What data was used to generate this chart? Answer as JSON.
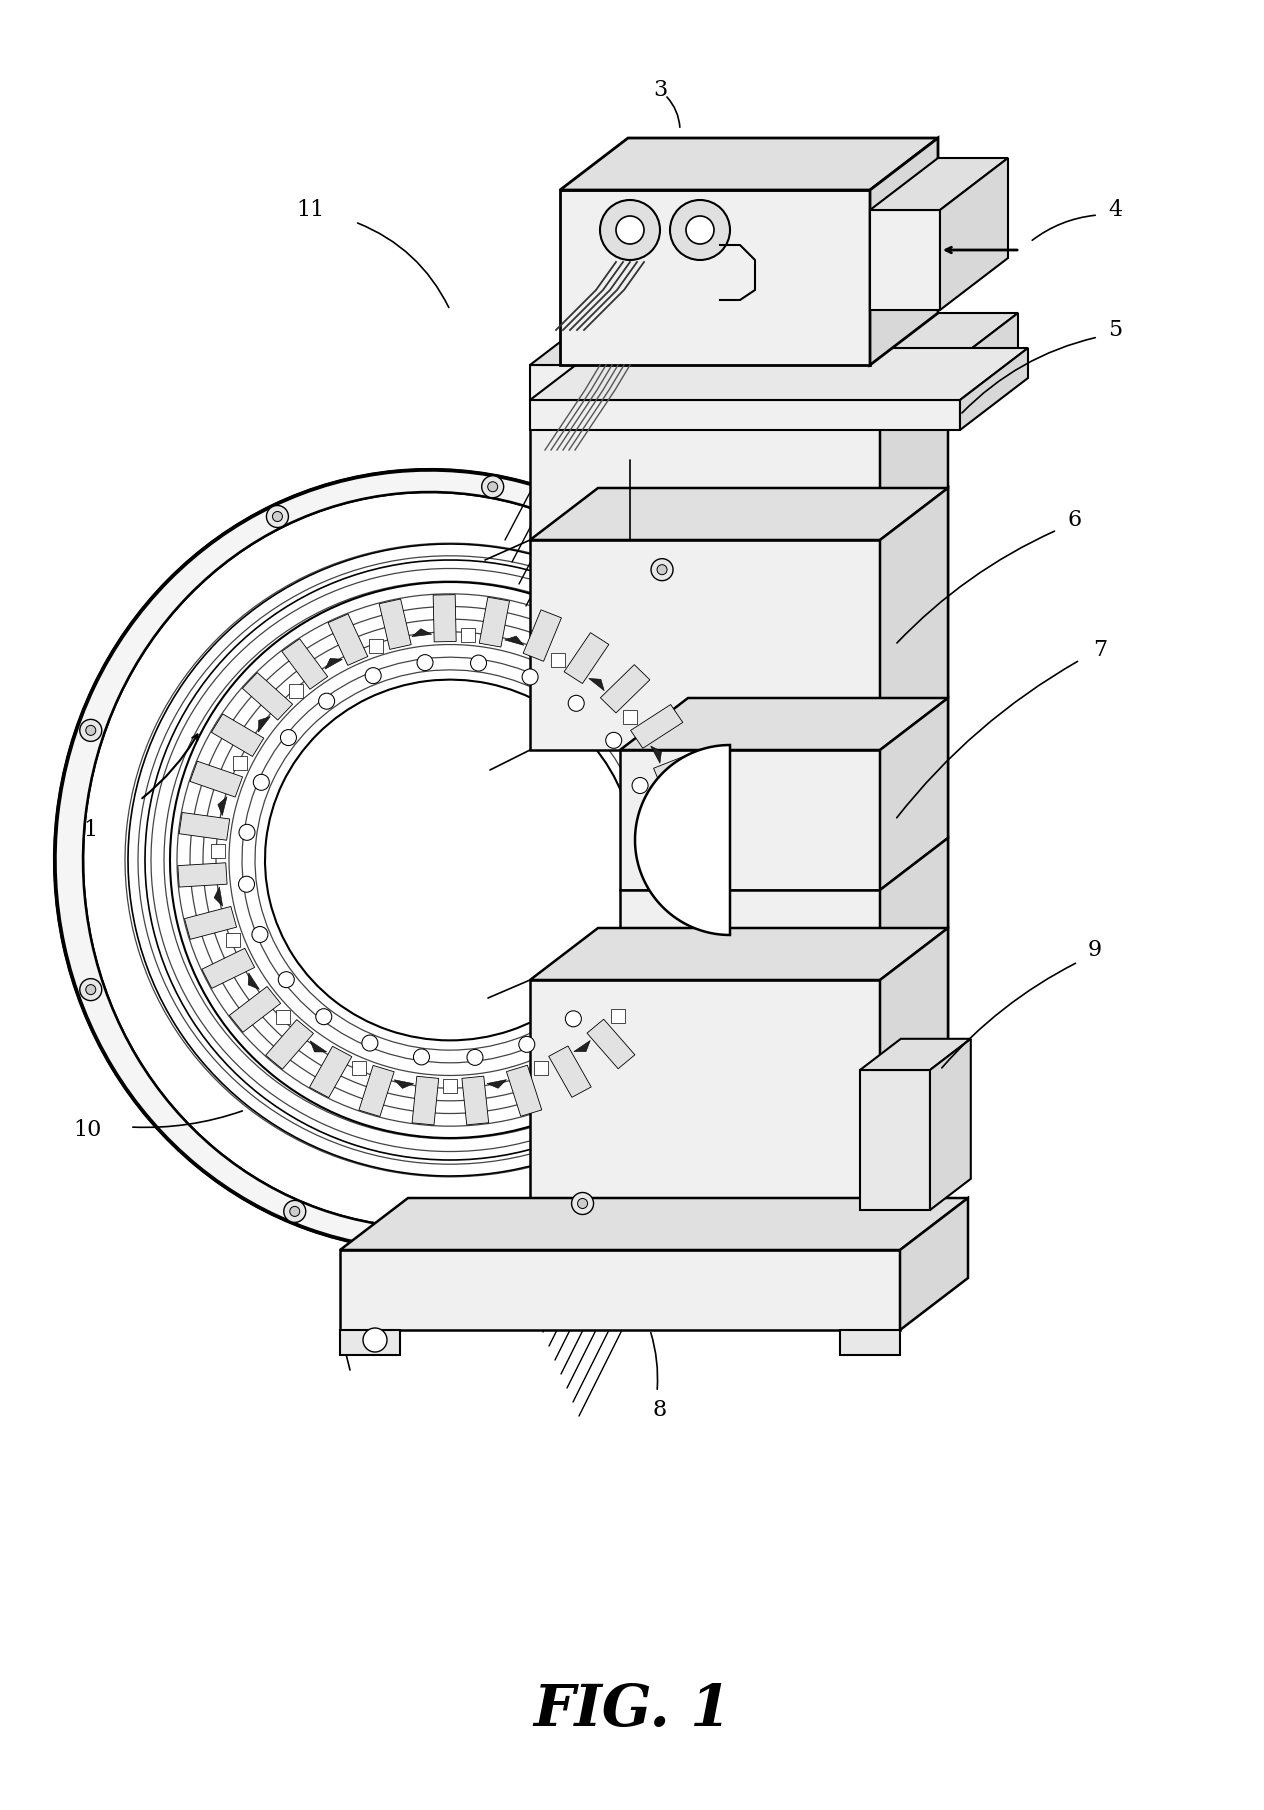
{
  "title": "FIG. 1",
  "title_fontsize": 42,
  "title_style": "italic",
  "title_weight": "bold",
  "bg_color": "#ffffff",
  "line_color": "#000000",
  "gray_light": "#f0f0f0",
  "gray_mid": "#e0e0e0",
  "gray_dark": "#cccccc",
  "gray_side": "#d8d8d8"
}
